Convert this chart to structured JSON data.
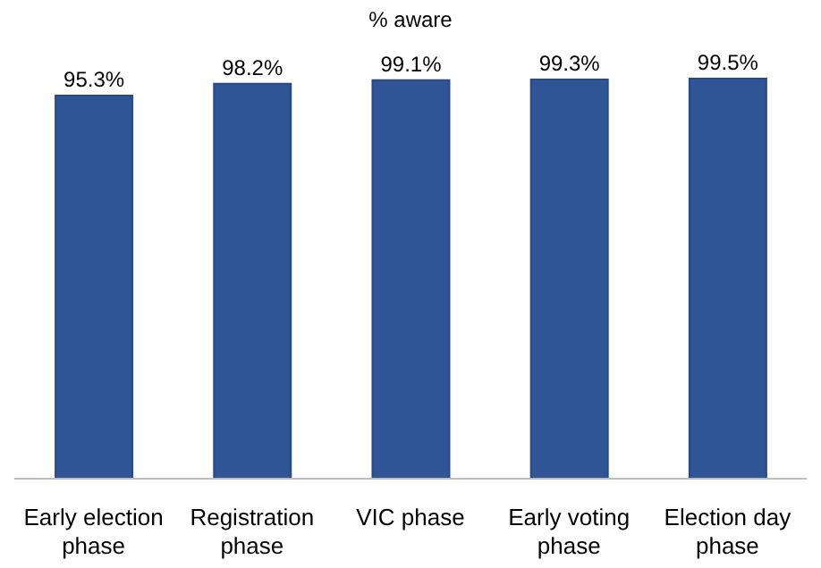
{
  "chart_data": {
    "type": "bar",
    "title": "% aware",
    "categories": [
      "Early election phase",
      "Registration phase",
      "VIC phase",
      "Early voting phase",
      "Election day phase"
    ],
    "values": [
      95.3,
      98.2,
      99.1,
      99.3,
      99.5
    ],
    "value_labels": [
      "95.3%",
      "98.2%",
      "99.1%",
      "99.3%",
      "99.5%"
    ],
    "color": "#2f5597",
    "grid": false,
    "legend": false
  }
}
